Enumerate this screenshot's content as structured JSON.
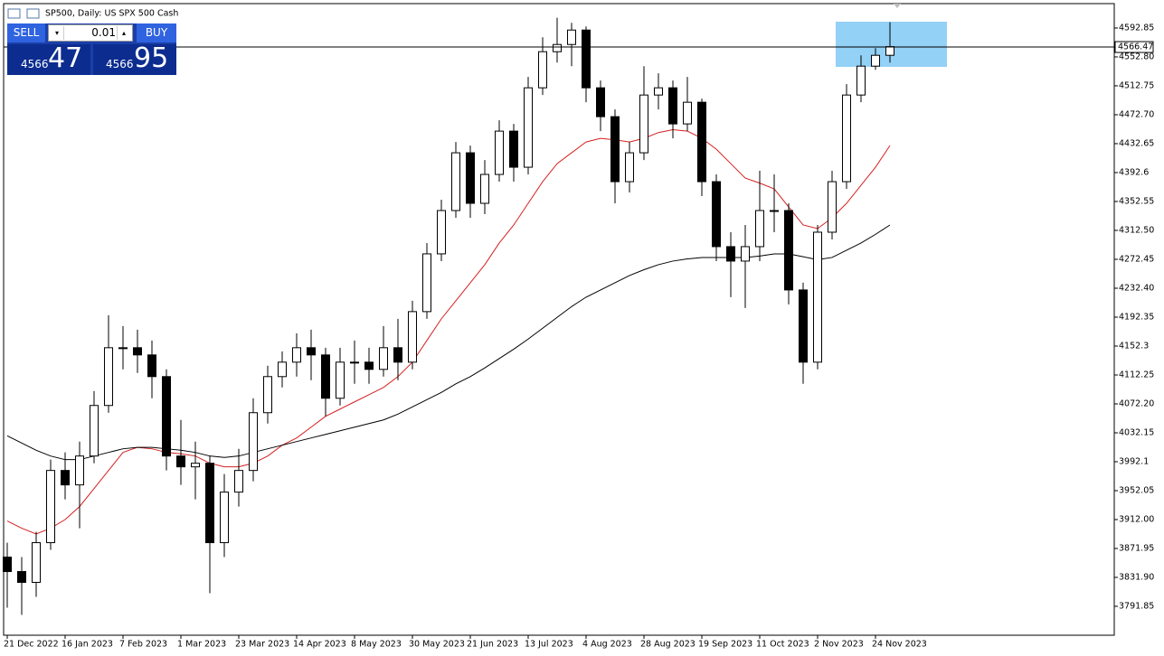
{
  "header": {
    "title": "SP500, Daily:  US SPX 500 Cash"
  },
  "trade_panel": {
    "sell": "SELL",
    "buy": "BUY",
    "volume": "0.01",
    "bid_big": "4566",
    "bid_small": "47",
    "ask_big": "4566",
    "ask_small": "95"
  },
  "chart_data": {
    "type": "candlestick",
    "categories": [
      "21 Dec 2022",
      null,
      null,
      null,
      "16 Jan 2023",
      null,
      null,
      null,
      "7 Feb 2023",
      null,
      null,
      null,
      "1 Mar 2023",
      null,
      null,
      null,
      "23 Mar 2023",
      null,
      null,
      null,
      "14 Apr 2023",
      null,
      null,
      null,
      "8 May 2023",
      null,
      null,
      null,
      "30 May 2023",
      null,
      null,
      null,
      "21 Jun 2023",
      null,
      null,
      null,
      "13 Jul 2023",
      null,
      null,
      null,
      "4 Aug 2023",
      null,
      null,
      null,
      "28 Aug 2023",
      null,
      null,
      null,
      "19 Sep 2023",
      null,
      null,
      null,
      "11 Oct 2023",
      null,
      null,
      null,
      "2 Nov 2023",
      null,
      null,
      null,
      "24 Nov 2023",
      null
    ],
    "open": [
      3860,
      3840,
      3825,
      3880,
      3980,
      3960,
      4000,
      4070,
      4150,
      4150,
      4140,
      4110,
      4000,
      3985,
      3990,
      3880,
      3950,
      3980,
      4060,
      4110,
      4130,
      4150,
      4140,
      4080,
      4130,
      4130,
      4120,
      4150,
      4130,
      4200,
      4280,
      4340,
      4420,
      4350,
      4390,
      4450,
      4400,
      4510,
      4560,
      4570,
      4590,
      4510,
      4470,
      4380,
      4420,
      4500,
      4510,
      4460,
      4490,
      4380,
      4290,
      4270,
      4290,
      4340,
      4340,
      4230,
      4130,
      4310,
      4380,
      4500,
      4540,
      4555
    ],
    "high": [
      3880,
      3860,
      3895,
      3995,
      4005,
      4020,
      4090,
      4195,
      4180,
      4175,
      4160,
      4120,
      4050,
      4020,
      4000,
      3975,
      4010,
      4080,
      4125,
      4145,
      4170,
      4175,
      4150,
      4150,
      4160,
      4150,
      4180,
      4190,
      4215,
      4295,
      4355,
      4435,
      4430,
      4410,
      4465,
      4460,
      4525,
      4580,
      4607,
      4600,
      4595,
      4520,
      4480,
      4435,
      4540,
      4530,
      4520,
      4525,
      4495,
      4390,
      4310,
      4320,
      4395,
      4390,
      4350,
      4240,
      4320,
      4395,
      4515,
      4555,
      4565,
      4601
    ],
    "low": [
      3790,
      3780,
      3805,
      3870,
      3940,
      3900,
      3990,
      4060,
      4120,
      4115,
      4080,
      3980,
      3960,
      3940,
      3810,
      3860,
      3930,
      3965,
      4045,
      4095,
      4110,
      4105,
      4055,
      4070,
      4100,
      4100,
      4110,
      4105,
      4120,
      4190,
      4270,
      4330,
      4330,
      4335,
      4380,
      4380,
      4390,
      4500,
      4545,
      4540,
      4490,
      4450,
      4350,
      4365,
      4410,
      4480,
      4440,
      4450,
      4360,
      4270,
      4220,
      4205,
      4270,
      4310,
      4210,
      4100,
      4120,
      4300,
      4370,
      4490,
      4535,
      4545
    ],
    "close": [
      3840,
      3825,
      3880,
      3980,
      3960,
      4000,
      4070,
      4150,
      4150,
      4140,
      4110,
      4000,
      3985,
      3990,
      3880,
      3950,
      3980,
      4060,
      4110,
      4130,
      4150,
      4140,
      4080,
      4130,
      4130,
      4120,
      4150,
      4130,
      4200,
      4280,
      4340,
      4420,
      4350,
      4390,
      4450,
      4400,
      4510,
      4560,
      4570,
      4590,
      4510,
      4470,
      4380,
      4420,
      4500,
      4510,
      4460,
      4490,
      4380,
      4290,
      4270,
      4290,
      4340,
      4340,
      4230,
      4130,
      4310,
      4380,
      4500,
      4540,
      4555,
      4567
    ],
    "up_color": "#ffffff",
    "down_color": "#000000",
    "moving_averages": [
      {
        "color": "#d42020",
        "values": [
          3910,
          3900,
          3892,
          3900,
          3912,
          3930,
          3955,
          3980,
          4005,
          4012,
          4010,
          4005,
          4003,
          4000,
          3990,
          3985,
          3985,
          3990,
          4000,
          4015,
          4025,
          4040,
          4055,
          4065,
          4075,
          4085,
          4095,
          4110,
          4130,
          4160,
          4190,
          4215,
          4240,
          4265,
          4295,
          4320,
          4350,
          4380,
          4405,
          4420,
          4435,
          4440,
          4438,
          4435,
          4440,
          4448,
          4452,
          4450,
          4440,
          4425,
          4405,
          4385,
          4378,
          4370,
          4345,
          4320,
          4315,
          4330,
          4350,
          4375,
          4400,
          4430
        ]
      },
      {
        "color": "#000000",
        "values": [
          4028,
          4018,
          4008,
          4000,
          3995,
          3995,
          4000,
          4005,
          4010,
          4012,
          4012,
          4010,
          4008,
          4005,
          4000,
          3998,
          4000,
          4005,
          4010,
          4015,
          4020,
          4025,
          4030,
          4035,
          4040,
          4045,
          4050,
          4058,
          4068,
          4078,
          4088,
          4100,
          4110,
          4122,
          4135,
          4148,
          4162,
          4177,
          4192,
          4207,
          4220,
          4230,
          4240,
          4250,
          4258,
          4265,
          4270,
          4273,
          4275,
          4275,
          4275,
          4275,
          4277,
          4280,
          4280,
          4276,
          4272,
          4275,
          4285,
          4295,
          4307,
          4320
        ]
      }
    ],
    "ylim": [
      3751.8,
      4626.6
    ],
    "yticks": [
      3791.85,
      {
        "value": 3831.9,
        "label": "3831.90"
      },
      3871.95,
      {
        "value": 3912,
        "label": "3912.00"
      },
      3952.05,
      3992.1,
      4032.15,
      {
        "value": 4072.2,
        "label": "4072.20"
      },
      4112.25,
      4152.3,
      4192.35,
      {
        "value": 4232.4,
        "label": "4232.40"
      },
      4272.45,
      {
        "value": 4312.5,
        "label": "4312.50"
      },
      4352.55,
      4392.6,
      4432.65,
      {
        "value": 4472.7,
        "label": "4472.70"
      },
      4512.75,
      {
        "value": 4552.8,
        "label": "4552.80"
      },
      4592.85
    ],
    "last_price": 4566.47
  }
}
